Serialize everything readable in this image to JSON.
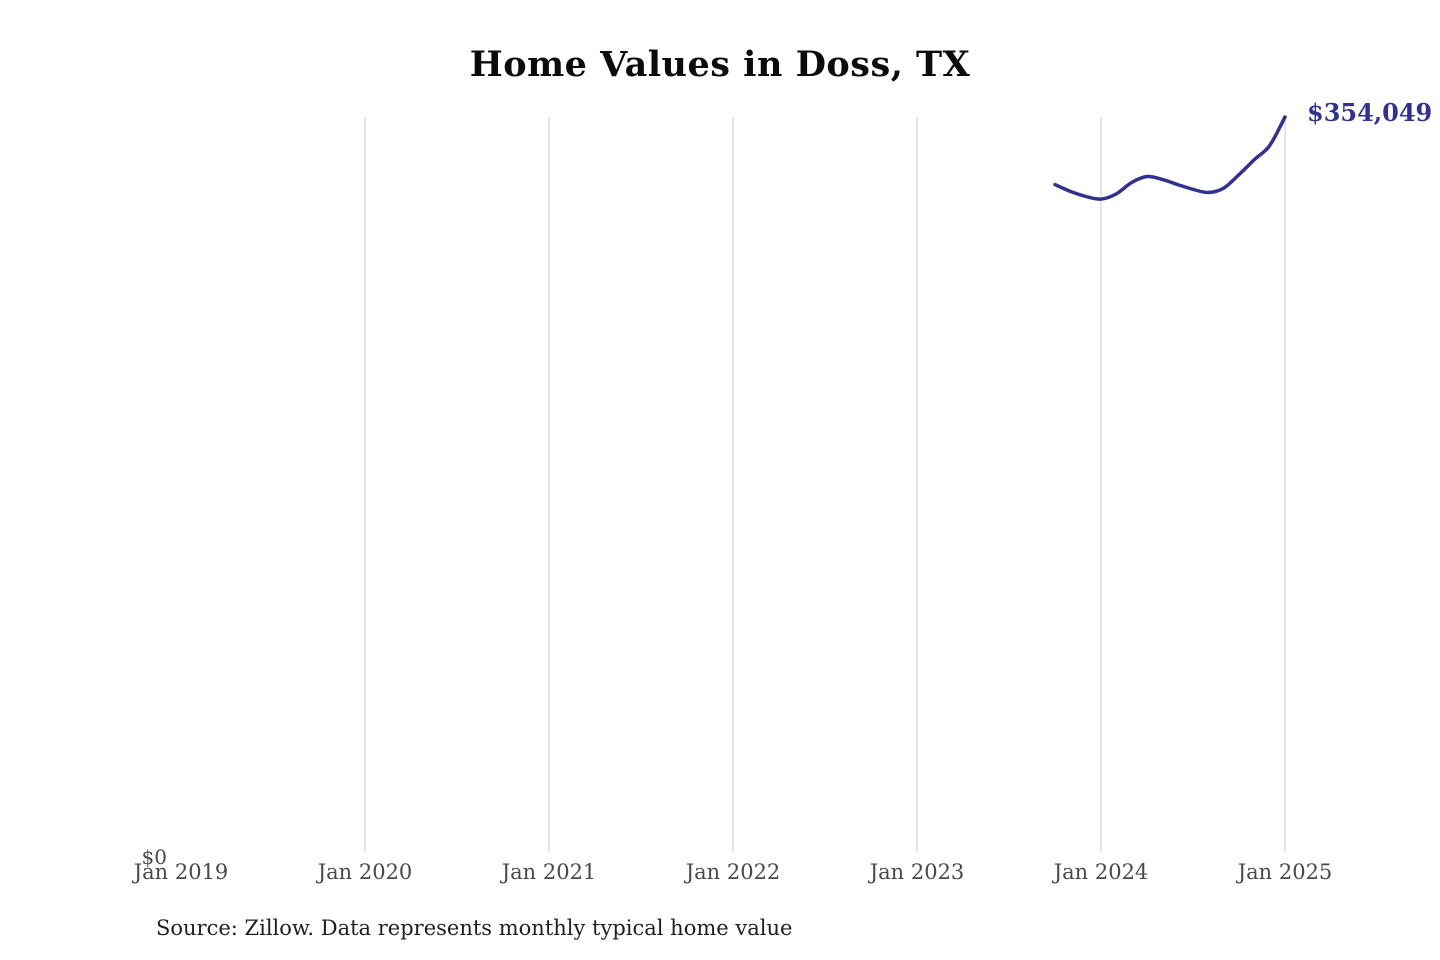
{
  "page": {
    "title": "Home Values in Doss, TX",
    "source_note": "Source: Zillow. Data represents monthly typical home value"
  },
  "colors": {
    "line": "#32318f",
    "end_label": "#32318f",
    "grid": "#cccccc",
    "axis_text": "#4a4a4a",
    "title_text": "#0b0b0b",
    "background": "#ffffff"
  },
  "chart_data": {
    "type": "line",
    "title": "Home Values in Doss, TX",
    "xlabel": "",
    "ylabel": "",
    "ylim": [
      0,
      354049
    ],
    "grid": "vertical-only",
    "legend": "none",
    "x_tick_labels": [
      "Jan 2019",
      "Jan 2020",
      "Jan 2021",
      "Jan 2022",
      "Jan 2023",
      "Jan 2024",
      "Jan 2025"
    ],
    "y_tick_labels": [
      "$0"
    ],
    "last_value_label": "$354,049",
    "series": [
      {
        "name": "Typical home value",
        "x": [
          "2023-10",
          "2023-11",
          "2023-12",
          "2024-01",
          "2024-02",
          "2024-03",
          "2024-04",
          "2024-05",
          "2024-06",
          "2024-07",
          "2024-08",
          "2024-09",
          "2024-10",
          "2024-11",
          "2024-12",
          "2025-01"
        ],
        "values": [
          321500,
          318200,
          315800,
          314500,
          317000,
          322500,
          325400,
          324000,
          321500,
          319200,
          317700,
          319800,
          326300,
          333500,
          340300,
          354049
        ]
      }
    ]
  }
}
